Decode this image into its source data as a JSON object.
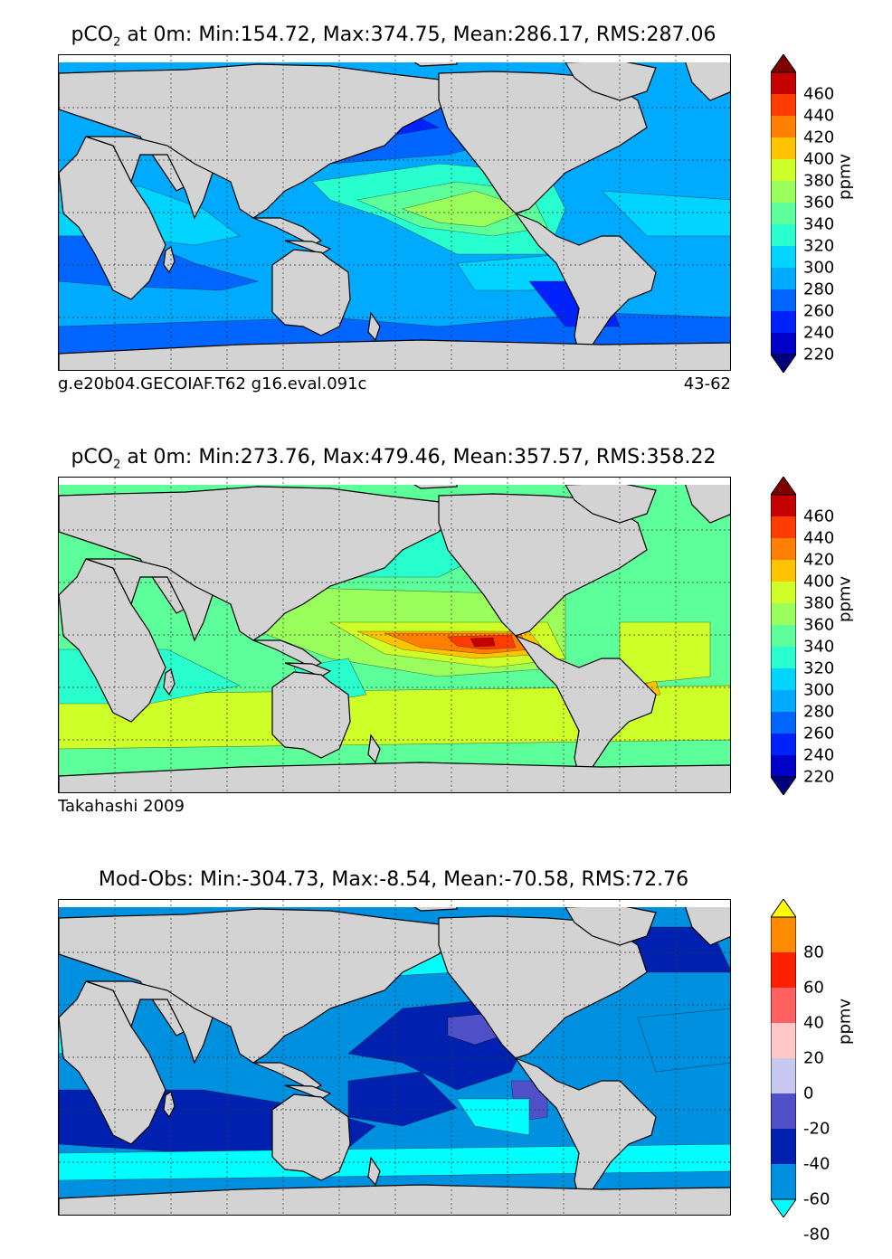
{
  "panels": [
    {
      "title_prefix": "pCO",
      "title_sub": "2",
      "title_suffix": " at 0m: Min:154.72, Max:374.75, Mean:286.17, RMS:287.06",
      "caption_left": "g.e20b04.GECOIAF.T62 g16.eval.091c",
      "caption_right": "43-62",
      "colorbar_unit": "ppmv",
      "colorbar_ticks": [
        "460",
        "440",
        "420",
        "400",
        "380",
        "360",
        "340",
        "320",
        "300",
        "280",
        "260",
        "240",
        "220"
      ]
    },
    {
      "title_prefix": "pCO",
      "title_sub": "2",
      "title_suffix": " at 0m: Min:273.76, Max:479.46, Mean:357.57, RMS:358.22",
      "caption_left": "Takahashi 2009",
      "caption_right": "",
      "colorbar_unit": "ppmv",
      "colorbar_ticks": [
        "460",
        "440",
        "420",
        "400",
        "380",
        "360",
        "340",
        "320",
        "300",
        "280",
        "260",
        "240",
        "220"
      ]
    },
    {
      "title_prefix": "Mod-Obs: Min:-304.73, Max:-8.54, Mean:-70.58, RMS:72.76",
      "title_sub": "",
      "title_suffix": "",
      "caption_left": "",
      "caption_right": "",
      "colorbar_unit": "ppmv",
      "colorbar_ticks": [
        "80",
        "60",
        "40",
        "20",
        "0",
        "-20",
        "-40",
        "-60",
        "-80"
      ]
    }
  ],
  "chart_data": [
    {
      "type": "heatmap",
      "title": "pCO2 at 0m: Min:154.72, Max:374.75, Mean:286.17, RMS:287.06",
      "variable": "pCO2 at 0m",
      "units": "ppmv",
      "stats": {
        "min": 154.72,
        "max": 374.75,
        "mean": 286.17,
        "rms": 287.06
      },
      "colorbar_levels": [
        200,
        220,
        240,
        260,
        280,
        300,
        320,
        340,
        360,
        380,
        400,
        420,
        440,
        460,
        480
      ],
      "colors": [
        "#00007f",
        "#0000c8",
        "#0022ff",
        "#0066ff",
        "#00aaff",
        "#00d4ff",
        "#29ffce",
        "#5dff9a",
        "#9aff5d",
        "#ceff29",
        "#ffc400",
        "#ff8000",
        "#ff3c00",
        "#c40000",
        "#7f0000"
      ],
      "source": "g.e20b04.GECOIAF.T62 g16.eval.091c",
      "years": "43-62",
      "extend": "both"
    },
    {
      "type": "heatmap",
      "title": "pCO2 at 0m: Min:273.76, Max:479.46, Mean:357.57, RMS:358.22",
      "variable": "pCO2 at 0m",
      "units": "ppmv",
      "stats": {
        "min": 273.76,
        "max": 479.46,
        "mean": 357.57,
        "rms": 358.22
      },
      "colorbar_levels": [
        200,
        220,
        240,
        260,
        280,
        300,
        320,
        340,
        360,
        380,
        400,
        420,
        440,
        460,
        480
      ],
      "source": "Takahashi 2009",
      "extend": "both"
    },
    {
      "type": "heatmap",
      "title": "Mod-Obs: Min:-304.73, Max:-8.54, Mean:-70.58, RMS:72.76",
      "variable": "Mod-Obs",
      "units": "ppmv",
      "stats": {
        "min": -304.73,
        "max": -8.54,
        "mean": -70.58,
        "rms": 72.76
      },
      "colorbar_levels": [
        -100,
        -80,
        -60,
        -40,
        -20,
        0,
        20,
        40,
        60,
        80,
        100
      ],
      "colors": [
        "#00ffff",
        "#0090e0",
        "#0020b0",
        "#5050c8",
        "#c8c8f0",
        "#ffc8c8",
        "#ff6060",
        "#ff2000",
        "#ff8c00",
        "#ffff00"
      ],
      "extend": "both"
    }
  ]
}
